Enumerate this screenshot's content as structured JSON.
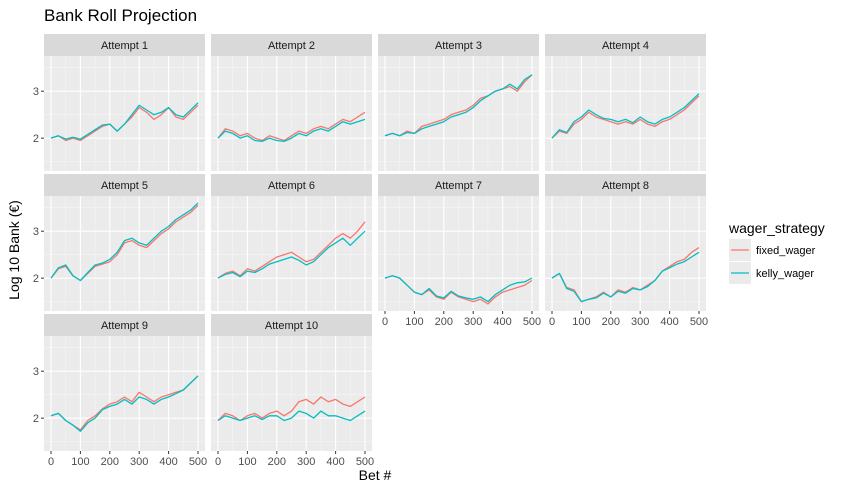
{
  "chart_data": {
    "type": "line",
    "title": "Bank Roll Projection",
    "xlabel": "Bet #",
    "ylabel": "Log 10 Bank (€)",
    "xlim": [
      0,
      500
    ],
    "ylim": [
      1.3,
      3.75
    ],
    "x_ticks": [
      0,
      100,
      200,
      300,
      400,
      500
    ],
    "y_ticks": [
      2,
      3
    ],
    "grid": true,
    "legend": {
      "title": "wager_strategy",
      "position": "right",
      "entries": [
        "fixed_wager",
        "kelly_wager"
      ]
    },
    "colors": {
      "fixed_wager": "#F8766D",
      "kelly_wager": "#00BFC4"
    },
    "x": [
      0,
      25,
      50,
      75,
      100,
      125,
      150,
      175,
      200,
      225,
      250,
      275,
      300,
      325,
      350,
      375,
      400,
      425,
      450,
      475,
      500
    ],
    "facets": [
      {
        "label": "Attempt 1",
        "series": [
          {
            "name": "fixed_wager",
            "values": [
              2.0,
              2.05,
              1.95,
              2.0,
              1.95,
              2.05,
              2.15,
              2.25,
              2.3,
              2.15,
              2.3,
              2.45,
              2.65,
              2.55,
              2.4,
              2.5,
              2.65,
              2.45,
              2.4,
              2.55,
              2.7
            ]
          },
          {
            "name": "kelly_wager",
            "values": [
              2.0,
              2.05,
              1.98,
              2.02,
              1.98,
              2.08,
              2.18,
              2.28,
              2.3,
              2.15,
              2.3,
              2.5,
              2.7,
              2.6,
              2.5,
              2.55,
              2.65,
              2.5,
              2.45,
              2.6,
              2.75
            ]
          }
        ]
      },
      {
        "label": "Attempt 2",
        "series": [
          {
            "name": "fixed_wager",
            "values": [
              2.0,
              2.2,
              2.15,
              2.05,
              2.1,
              2.0,
              1.95,
              2.05,
              2.0,
              1.95,
              2.05,
              2.15,
              2.1,
              2.2,
              2.25,
              2.2,
              2.3,
              2.4,
              2.35,
              2.45,
              2.55
            ]
          },
          {
            "name": "kelly_wager",
            "values": [
              2.0,
              2.15,
              2.1,
              2.0,
              2.05,
              1.95,
              1.93,
              2.0,
              1.95,
              1.93,
              2.0,
              2.1,
              2.05,
              2.15,
              2.2,
              2.15,
              2.25,
              2.35,
              2.3,
              2.35,
              2.4
            ]
          }
        ]
      },
      {
        "label": "Attempt 3",
        "series": [
          {
            "name": "fixed_wager",
            "values": [
              2.05,
              2.1,
              2.05,
              2.15,
              2.1,
              2.25,
              2.3,
              2.35,
              2.4,
              2.5,
              2.55,
              2.6,
              2.7,
              2.85,
              2.9,
              3.0,
              3.05,
              3.1,
              3.0,
              3.2,
              3.35
            ]
          },
          {
            "name": "kelly_wager",
            "values": [
              2.05,
              2.1,
              2.05,
              2.12,
              2.1,
              2.2,
              2.25,
              2.3,
              2.35,
              2.45,
              2.5,
              2.55,
              2.65,
              2.8,
              2.9,
              3.0,
              3.05,
              3.15,
              3.05,
              3.25,
              3.35
            ]
          }
        ]
      },
      {
        "label": "Attempt 4",
        "series": [
          {
            "name": "fixed_wager",
            "values": [
              2.0,
              2.15,
              2.1,
              2.3,
              2.4,
              2.55,
              2.45,
              2.4,
              2.35,
              2.3,
              2.35,
              2.3,
              2.4,
              2.3,
              2.25,
              2.35,
              2.4,
              2.5,
              2.6,
              2.75,
              2.9
            ]
          },
          {
            "name": "kelly_wager",
            "values": [
              2.0,
              2.18,
              2.12,
              2.35,
              2.45,
              2.6,
              2.5,
              2.42,
              2.4,
              2.35,
              2.4,
              2.33,
              2.45,
              2.35,
              2.3,
              2.4,
              2.45,
              2.55,
              2.65,
              2.8,
              2.95
            ]
          }
        ]
      },
      {
        "label": "Attempt 5",
        "series": [
          {
            "name": "fixed_wager",
            "values": [
              2.0,
              2.2,
              2.25,
              2.05,
              1.95,
              2.1,
              2.25,
              2.3,
              2.35,
              2.5,
              2.75,
              2.8,
              2.7,
              2.65,
              2.8,
              2.95,
              3.05,
              3.2,
              3.3,
              3.4,
              3.55
            ]
          },
          {
            "name": "kelly_wager",
            "values": [
              2.0,
              2.22,
              2.28,
              2.05,
              1.95,
              2.12,
              2.28,
              2.32,
              2.4,
              2.55,
              2.8,
              2.85,
              2.75,
              2.7,
              2.85,
              3.0,
              3.1,
              3.25,
              3.35,
              3.45,
              3.6
            ]
          }
        ]
      },
      {
        "label": "Attempt 6",
        "series": [
          {
            "name": "fixed_wager",
            "values": [
              2.0,
              2.1,
              2.15,
              2.05,
              2.2,
              2.15,
              2.25,
              2.35,
              2.45,
              2.5,
              2.55,
              2.45,
              2.35,
              2.4,
              2.55,
              2.7,
              2.85,
              2.95,
              2.85,
              3.0,
              3.2
            ]
          },
          {
            "name": "kelly_wager",
            "values": [
              2.0,
              2.08,
              2.12,
              2.03,
              2.15,
              2.12,
              2.2,
              2.3,
              2.35,
              2.4,
              2.45,
              2.38,
              2.28,
              2.35,
              2.5,
              2.65,
              2.75,
              2.85,
              2.7,
              2.85,
              3.0
            ]
          }
        ]
      },
      {
        "label": "Attempt 7",
        "series": [
          {
            "name": "fixed_wager",
            "values": [
              2.0,
              2.05,
              2.0,
              1.85,
              1.7,
              1.65,
              1.75,
              1.6,
              1.55,
              1.7,
              1.6,
              1.55,
              1.5,
              1.55,
              1.45,
              1.6,
              1.7,
              1.75,
              1.8,
              1.85,
              1.95
            ]
          },
          {
            "name": "kelly_wager",
            "values": [
              2.0,
              2.05,
              2.0,
              1.85,
              1.7,
              1.65,
              1.78,
              1.62,
              1.58,
              1.72,
              1.62,
              1.58,
              1.55,
              1.6,
              1.5,
              1.65,
              1.75,
              1.85,
              1.9,
              1.92,
              2.0
            ]
          }
        ]
      },
      {
        "label": "Attempt 8",
        "series": [
          {
            "name": "fixed_wager",
            "values": [
              2.0,
              2.1,
              1.8,
              1.75,
              1.5,
              1.55,
              1.6,
              1.7,
              1.6,
              1.75,
              1.7,
              1.8,
              1.75,
              1.85,
              1.95,
              2.15,
              2.25,
              2.35,
              2.4,
              2.55,
              2.65
            ]
          },
          {
            "name": "kelly_wager",
            "values": [
              2.0,
              2.1,
              1.78,
              1.72,
              1.5,
              1.55,
              1.58,
              1.68,
              1.6,
              1.72,
              1.68,
              1.78,
              1.75,
              1.82,
              1.95,
              2.15,
              2.22,
              2.3,
              2.35,
              2.45,
              2.55
            ]
          }
        ]
      },
      {
        "label": "Attempt 9",
        "series": [
          {
            "name": "fixed_wager",
            "values": [
              2.05,
              2.1,
              1.95,
              1.85,
              1.75,
              1.95,
              2.05,
              2.2,
              2.3,
              2.35,
              2.45,
              2.35,
              2.55,
              2.45,
              2.35,
              2.45,
              2.5,
              2.55,
              2.6,
              2.75,
              2.9
            ]
          },
          {
            "name": "kelly_wager",
            "values": [
              2.05,
              2.1,
              1.95,
              1.85,
              1.72,
              1.9,
              2.0,
              2.18,
              2.25,
              2.3,
              2.4,
              2.3,
              2.45,
              2.4,
              2.3,
              2.4,
              2.45,
              2.52,
              2.6,
              2.75,
              2.9
            ]
          }
        ]
      },
      {
        "label": "Attempt 10",
        "series": [
          {
            "name": "fixed_wager",
            "values": [
              1.95,
              2.1,
              2.05,
              1.95,
              2.05,
              2.1,
              2.0,
              2.1,
              2.15,
              2.05,
              2.15,
              2.35,
              2.4,
              2.3,
              2.45,
              2.35,
              2.4,
              2.3,
              2.25,
              2.35,
              2.45
            ]
          },
          {
            "name": "kelly_wager",
            "values": [
              1.95,
              2.05,
              2.0,
              1.95,
              2.0,
              2.05,
              1.97,
              2.05,
              2.05,
              1.95,
              2.0,
              2.15,
              2.1,
              2.0,
              2.15,
              2.05,
              2.05,
              2.0,
              1.95,
              2.05,
              2.15
            ]
          }
        ]
      }
    ]
  }
}
